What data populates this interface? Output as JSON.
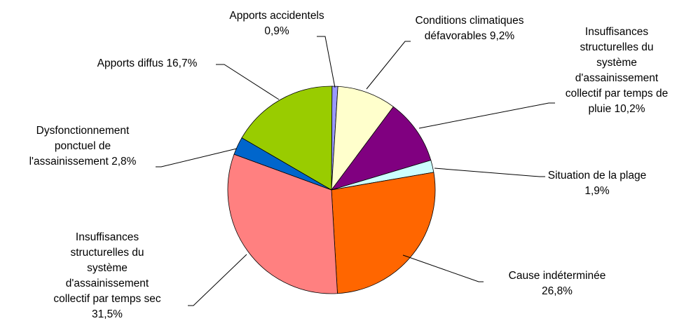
{
  "chart_data": {
    "type": "pie",
    "title": "",
    "slices": [
      {
        "label": [
          "Apports accidentels",
          "0,9%"
        ],
        "value": 0.9,
        "color": "#9999ff"
      },
      {
        "label": [
          "Conditions climatiques",
          "défavorables 9,2%"
        ],
        "value": 9.2,
        "color": "#ffffcc"
      },
      {
        "label": [
          "Insuffisances",
          "structurelles du",
          "système",
          "d'assainissement",
          "collectif par temps de",
          "pluie 10,2%"
        ],
        "value": 10.2,
        "color": "#800080"
      },
      {
        "label": [
          "Situation de la plage",
          "1,9%"
        ],
        "value": 1.9,
        "color": "#ccffff"
      },
      {
        "label": [
          "Cause indéterminée",
          "26,8%"
        ],
        "value": 26.8,
        "color": "#ff6600"
      },
      {
        "label": [
          "Insuffisances",
          "structurelles du",
          "système",
          "d'assainissement",
          "collectif par temps sec",
          "31,5%"
        ],
        "value": 31.5,
        "color": "#ff8080"
      },
      {
        "label": [
          "Dysfonctionnement",
          "ponctuel de",
          "l'assainissement 2,8%"
        ],
        "value": 2.8,
        "color": "#0066cc"
      },
      {
        "label": [
          "Apports diffus 16,7%"
        ],
        "value": 16.7,
        "color": "#99cc00"
      }
    ]
  }
}
